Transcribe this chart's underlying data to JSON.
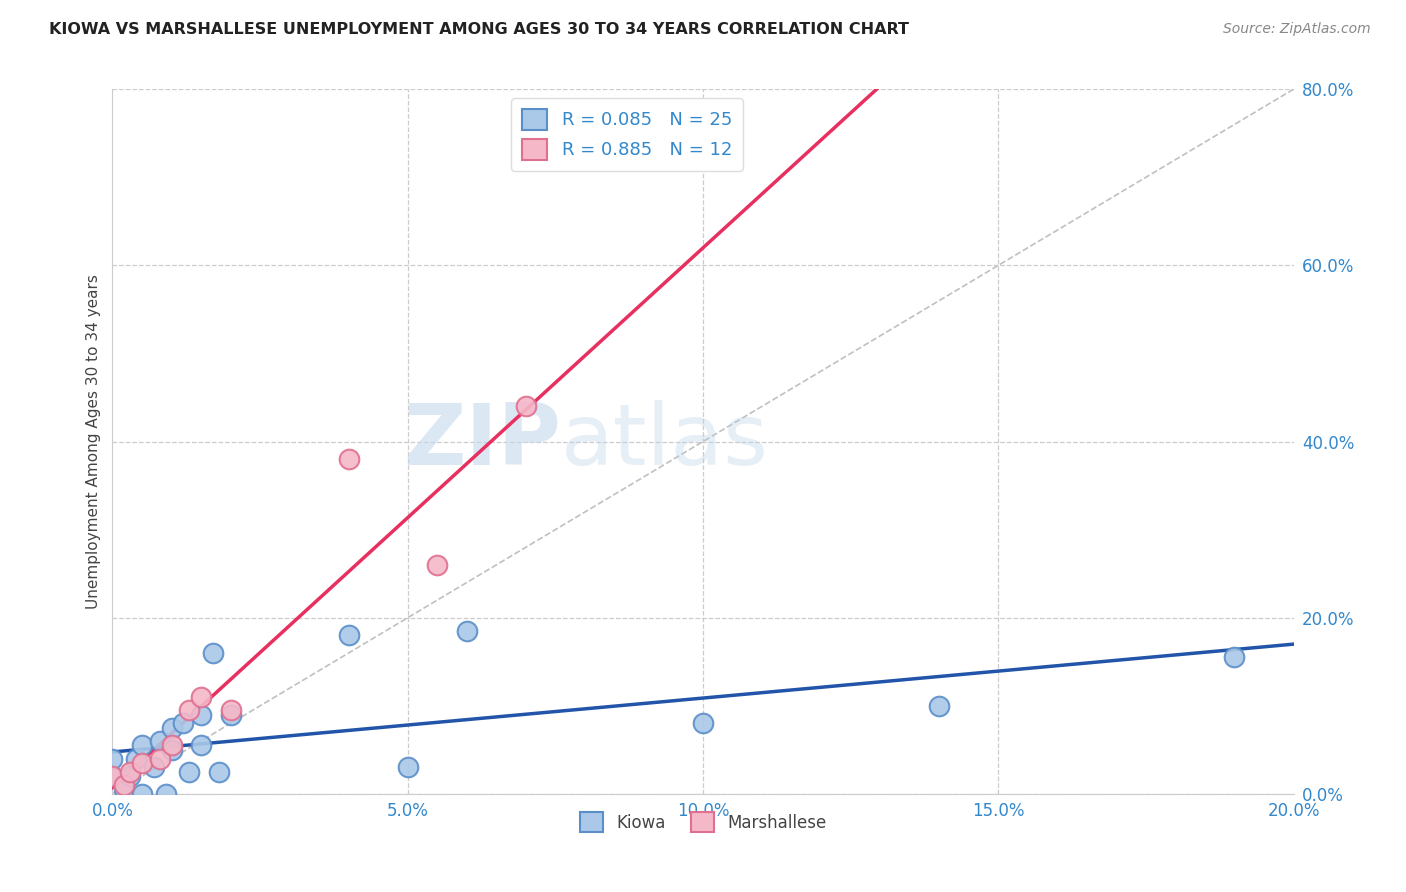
{
  "title": "KIOWA VS MARSHALLESE UNEMPLOYMENT AMONG AGES 30 TO 34 YEARS CORRELATION CHART",
  "source": "Source: ZipAtlas.com",
  "ylabel": "Unemployment Among Ages 30 to 34 years",
  "xlim": [
    0.0,
    0.2
  ],
  "ylim": [
    0.0,
    0.8
  ],
  "xticks": [
    0.0,
    0.05,
    0.1,
    0.15,
    0.2
  ],
  "yticks": [
    0.0,
    0.2,
    0.4,
    0.6,
    0.8
  ],
  "xtick_labels": [
    "0.0%",
    "5.0%",
    "10.0%",
    "15.0%",
    "20.0%"
  ],
  "ytick_labels": [
    "0.0%",
    "20.0%",
    "40.0%",
    "60.0%",
    "80.0%"
  ],
  "kiowa_color": "#aac8e8",
  "marshallese_color": "#f5b8c8",
  "kiowa_edge_color": "#5b8fc9",
  "marshallese_edge_color": "#e07090",
  "kiowa_line_color": "#2255aa",
  "marshallese_line_color": "#e83060",
  "diagonal_color": "#c0c0c0",
  "grid_color": "#cccccc",
  "title_color": "#222222",
  "axis_label_color": "#444444",
  "tick_color": "#3388cc",
  "source_color": "#888888",
  "legend_r_color": "#3388cc",
  "kiowa_R": 0.085,
  "kiowa_N": 25,
  "marshallese_R": 0.885,
  "marshallese_N": 12,
  "kiowa_x": [
    0.0,
    0.0,
    0.002,
    0.003,
    0.004,
    0.005,
    0.005,
    0.007,
    0.008,
    0.009,
    0.01,
    0.01,
    0.012,
    0.013,
    0.015,
    0.015,
    0.017,
    0.018,
    0.02,
    0.04,
    0.05,
    0.06,
    0.1,
    0.14,
    0.19
  ],
  "kiowa_y": [
    0.02,
    0.04,
    0.005,
    0.02,
    0.04,
    0.0,
    0.055,
    0.03,
    0.06,
    0.0,
    0.05,
    0.075,
    0.08,
    0.025,
    0.055,
    0.09,
    0.16,
    0.025,
    0.09,
    0.18,
    0.03,
    0.185,
    0.08,
    0.1,
    0.155
  ],
  "marshallese_x": [
    0.0,
    0.002,
    0.003,
    0.005,
    0.008,
    0.01,
    0.013,
    0.015,
    0.02,
    0.04,
    0.055,
    0.07
  ],
  "marshallese_y": [
    0.02,
    0.01,
    0.025,
    0.035,
    0.04,
    0.055,
    0.095,
    0.11,
    0.095,
    0.38,
    0.26,
    0.44
  ],
  "marker_size": 200,
  "background_color": "#ffffff"
}
